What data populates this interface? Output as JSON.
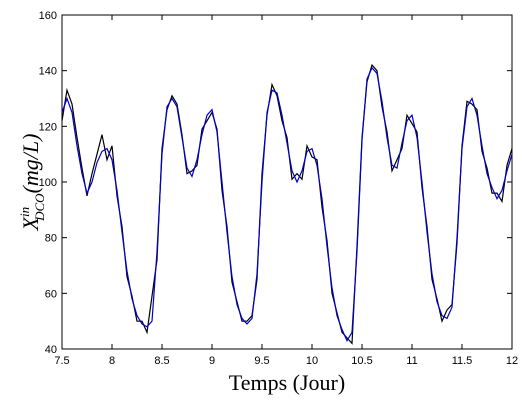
{
  "chart_data": {
    "type": "line",
    "xlabel": "Temps (Jour)",
    "ylabel": {
      "base": "X",
      "sup": "in",
      "sub": "DCO",
      "unit": "(mg/L)"
    },
    "x": [
      7.5,
      7.55,
      7.6,
      7.65,
      7.7,
      7.75,
      7.8,
      7.85,
      7.9,
      7.95,
      8.0,
      8.05,
      8.1,
      8.15,
      8.2,
      8.25,
      8.3,
      8.35,
      8.4,
      8.45,
      8.5,
      8.55,
      8.6,
      8.65,
      8.7,
      8.75,
      8.8,
      8.85,
      8.9,
      8.95,
      9.0,
      9.05,
      9.1,
      9.15,
      9.2,
      9.25,
      9.3,
      9.35,
      9.4,
      9.45,
      9.5,
      9.55,
      9.6,
      9.65,
      9.7,
      9.75,
      9.8,
      9.85,
      9.9,
      9.95,
      10.0,
      10.05,
      10.1,
      10.15,
      10.2,
      10.25,
      10.3,
      10.35,
      10.4,
      10.45,
      10.5,
      10.55,
      10.6,
      10.65,
      10.7,
      10.75,
      10.8,
      10.85,
      10.9,
      10.95,
      11.0,
      11.05,
      11.1,
      11.15,
      11.2,
      11.25,
      11.3,
      11.35,
      11.4,
      11.45,
      11.5,
      11.55,
      11.6,
      11.65,
      11.7,
      11.75,
      11.8,
      11.85,
      11.9,
      11.95,
      12.0
    ],
    "series": [
      {
        "color": "#000000",
        "values": [
          122,
          133,
          128,
          116,
          105,
          95,
          103,
          110,
          117,
          108,
          113,
          95,
          84,
          66,
          59,
          50,
          50,
          46,
          59,
          72,
          112,
          126,
          131,
          128,
          117,
          103,
          104,
          106,
          119,
          122,
          125,
          119,
          97,
          84,
          64,
          57,
          50,
          50,
          52,
          65,
          103,
          124,
          135,
          131,
          122,
          116,
          101,
          103,
          101,
          113,
          109,
          108,
          91,
          79,
          60,
          53,
          46,
          44,
          42,
          77,
          116,
          136,
          142,
          140,
          127,
          118,
          104,
          108,
          112,
          124,
          121,
          118,
          98,
          84,
          65,
          58,
          50,
          54,
          56,
          78,
          113,
          129,
          128,
          126,
          111,
          105,
          96,
          96,
          93,
          106,
          112
        ]
      },
      {
        "color": "#0000cc",
        "values": [
          125,
          130,
          125,
          113,
          103,
          96,
          100,
          107,
          111,
          112,
          108,
          97,
          82,
          68,
          58,
          52,
          49,
          48,
          50,
          75,
          110,
          127,
          130,
          127,
          116,
          105,
          102,
          108,
          117,
          124,
          126,
          118,
          100,
          82,
          66,
          56,
          51,
          49,
          51,
          67,
          100,
          125,
          133,
          132,
          124,
          114,
          104,
          100,
          104,
          111,
          112,
          106,
          94,
          77,
          62,
          52,
          47,
          43,
          46,
          75,
          115,
          137,
          141,
          139,
          129,
          116,
          106,
          105,
          114,
          122,
          124,
          116,
          100,
          82,
          67,
          57,
          52,
          51,
          55,
          80,
          112,
          127,
          130,
          124,
          113,
          103,
          98,
          94,
          97,
          104,
          110
        ]
      }
    ],
    "xlim": [
      7.5,
      12
    ],
    "xticks": [
      7.5,
      8,
      8.5,
      9,
      9.5,
      10,
      10.5,
      11,
      11.5,
      12
    ],
    "ylim": [
      40,
      160
    ],
    "yticks": [
      40,
      60,
      80,
      100,
      120,
      140,
      160
    ]
  }
}
